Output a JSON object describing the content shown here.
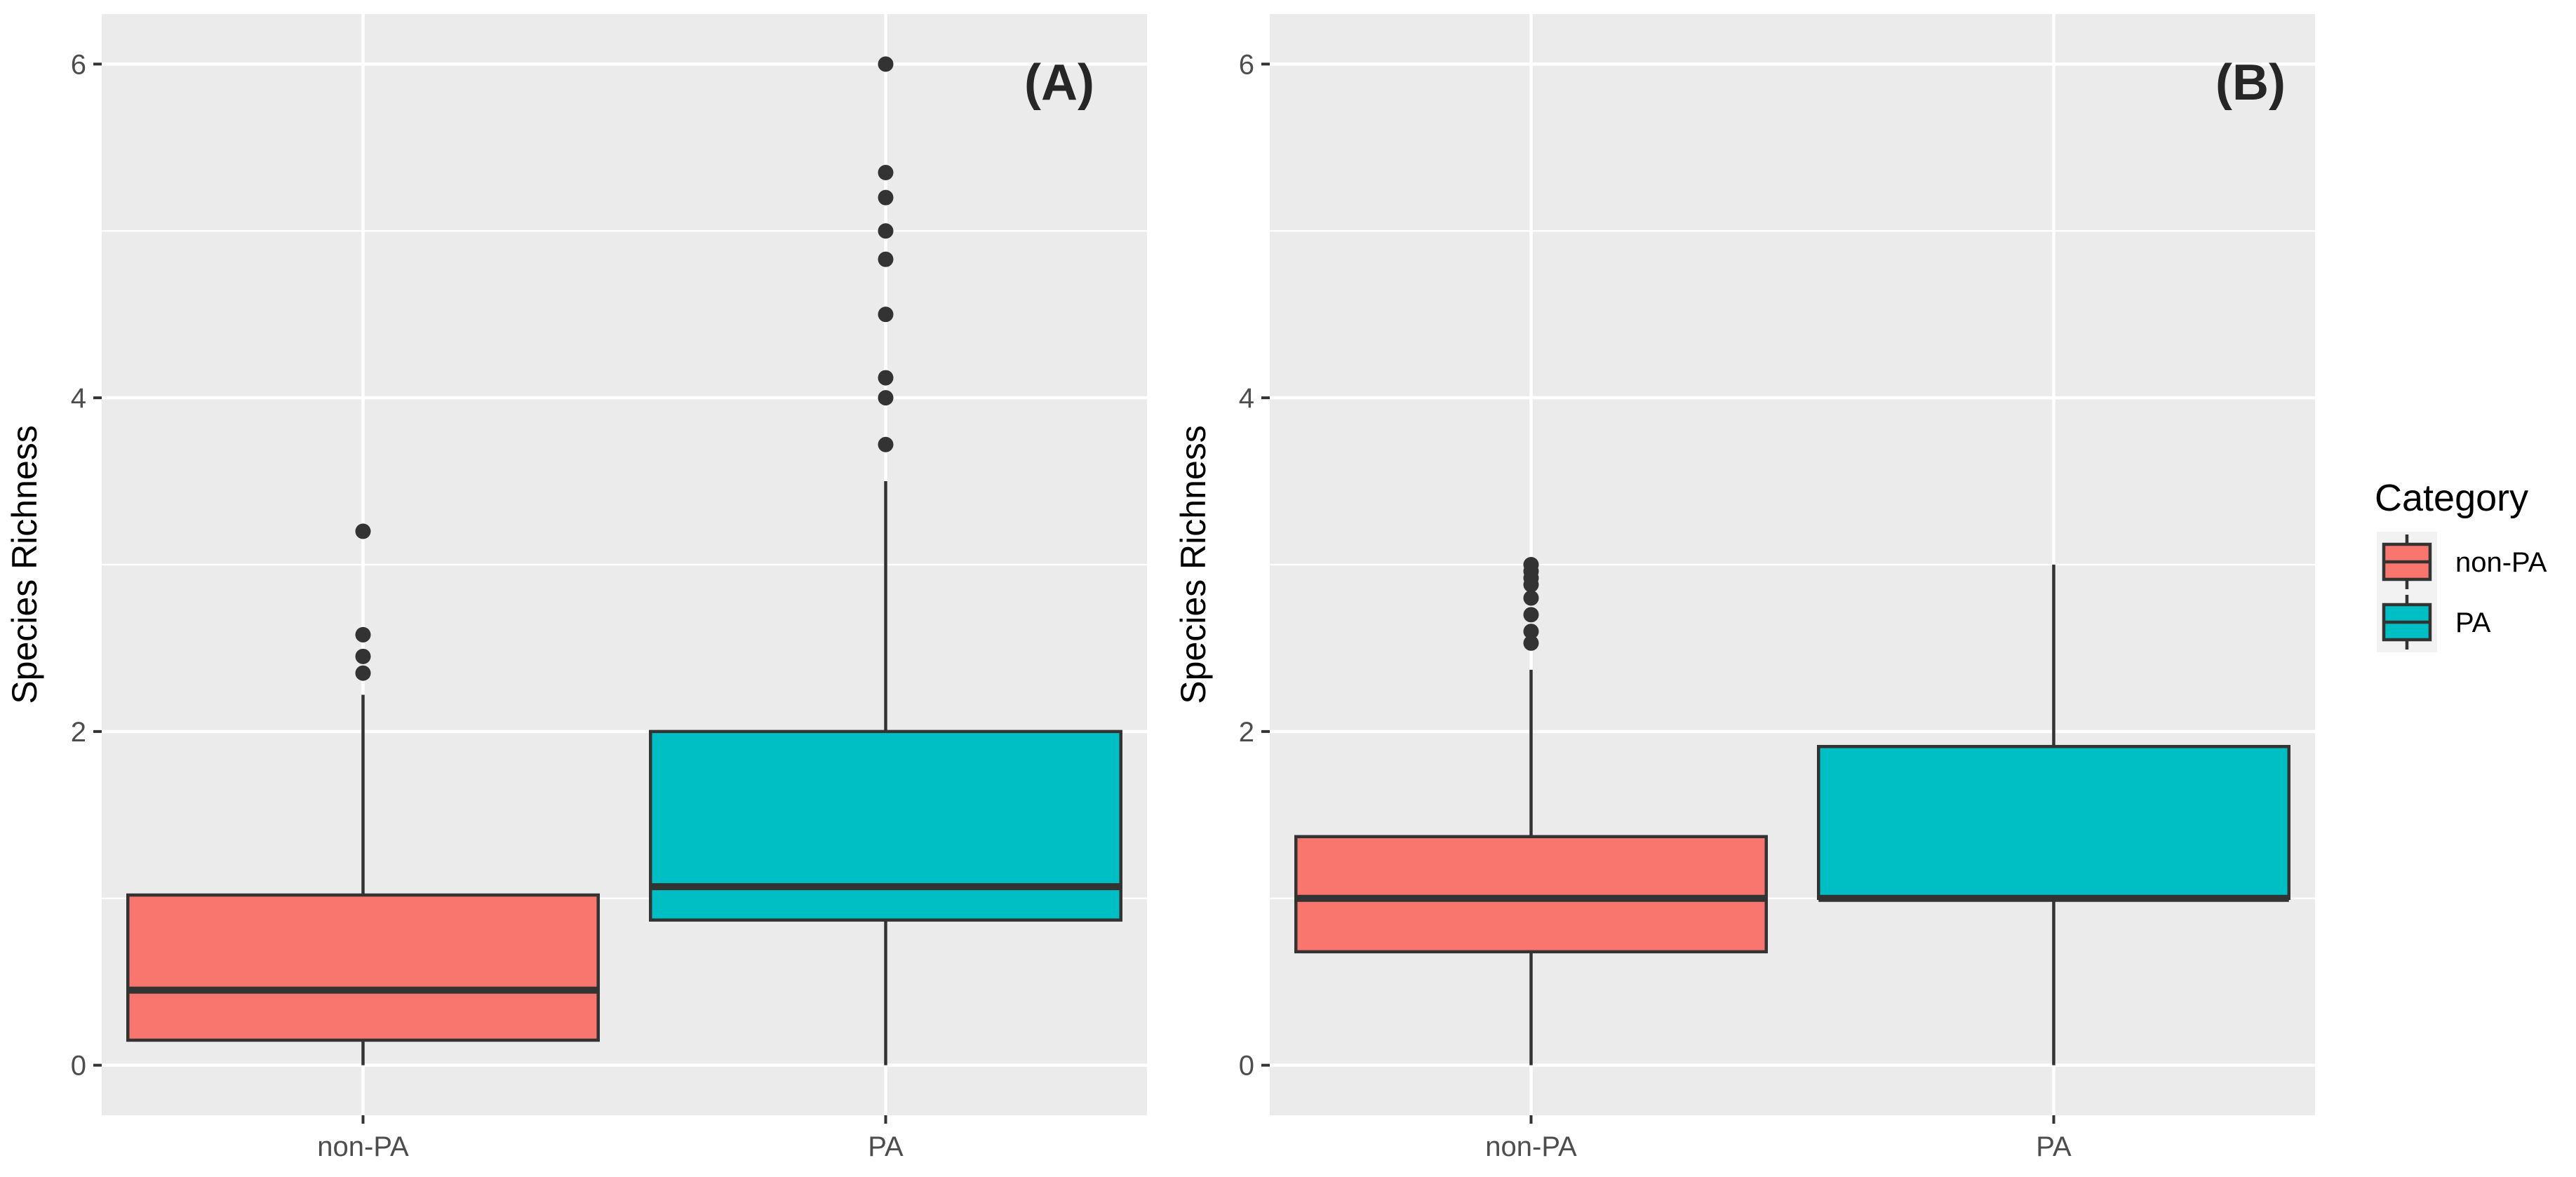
{
  "legend": {
    "title": "Category",
    "entries": [
      {
        "label": "non-PA",
        "color": "#F8766D"
      },
      {
        "label": "PA",
        "color": "#00BFC4"
      }
    ]
  },
  "chart_data": [
    {
      "type": "box",
      "tag": "(A)",
      "xlabel": "",
      "ylabel": "Species Richness",
      "categories": [
        "non-PA",
        "PA"
      ],
      "ylim": [
        -0.3,
        6.3
      ],
      "yticks": [
        0,
        2,
        4,
        6
      ],
      "tick_labels": [
        "0",
        "2",
        "4",
        "6"
      ],
      "grid": true,
      "boxes": [
        {
          "category": "non-PA",
          "color": "#F8766D",
          "whisker_low": 0.0,
          "q1": 0.15,
          "median": 0.45,
          "q3": 1.02,
          "whisker_high": 2.22,
          "outliers": [
            2.35,
            2.45,
            2.58,
            3.2
          ]
        },
        {
          "category": "PA",
          "color": "#00BFC4",
          "whisker_low": 0.0,
          "q1": 0.87,
          "median": 1.07,
          "q3": 2.0,
          "whisker_high": 3.5,
          "outliers": [
            3.72,
            4.0,
            4.12,
            4.5,
            4.83,
            5.0,
            5.2,
            5.35,
            6.0
          ]
        }
      ]
    },
    {
      "type": "box",
      "tag": "(B)",
      "xlabel": "",
      "ylabel": "Species Richness",
      "categories": [
        "non-PA",
        "PA"
      ],
      "ylim": [
        -0.3,
        6.3
      ],
      "yticks": [
        0,
        2,
        4,
        6
      ],
      "tick_labels": [
        "0",
        "2",
        "4",
        "6"
      ],
      "grid": true,
      "boxes": [
        {
          "category": "non-PA",
          "color": "#F8766D",
          "whisker_low": 0.0,
          "q1": 0.68,
          "median": 1.0,
          "q3": 1.37,
          "whisker_high": 2.37,
          "outliers": [
            2.53,
            2.6,
            2.7,
            2.8,
            2.88,
            2.92,
            2.96,
            3.0
          ]
        },
        {
          "category": "PA",
          "color": "#00BFC4",
          "whisker_low": 0.0,
          "q1": 1.0,
          "median": 1.0,
          "q3": 1.91,
          "whisker_high": 3.0,
          "outliers": []
        }
      ]
    }
  ]
}
